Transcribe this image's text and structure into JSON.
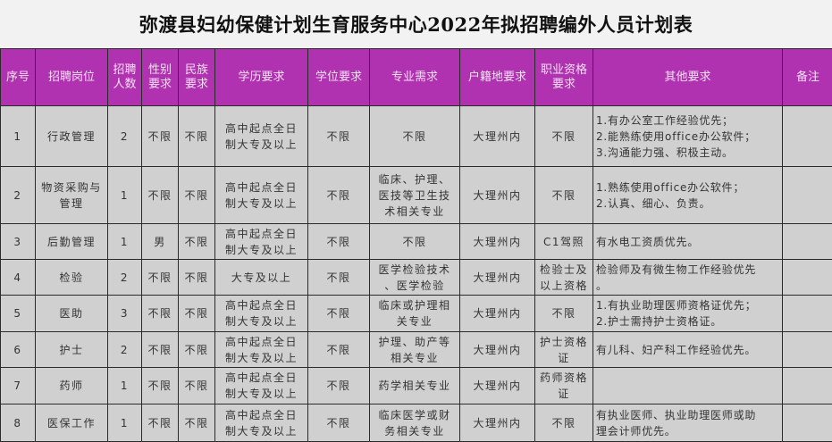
{
  "title": "弥渡县妇幼保健计划生育服务中心2022年拟招聘编外人员计划表",
  "colors": {
    "header_bg": "#b032b0",
    "header_text": "#f4e0f4",
    "cell_bg": "#d0d0d0"
  },
  "headers": [
    "序号",
    "招聘岗位",
    "招聘\n人数",
    "性别\n要求",
    "民族\n要求",
    "学历要求",
    "学位要求",
    "专业需求",
    "户籍地要求",
    "职业资格\n要求",
    "其他要求",
    "备注"
  ],
  "rows": [
    [
      "1",
      "行政管理",
      "2",
      "不限",
      "不限",
      "高中起点全日\n制大专及以上",
      "不限",
      "不限",
      "大理州内",
      "不限",
      "1.有办公室工作经验优先；\n2.能熟练使用office办公软件；\n3.沟通能力强、积极主动。",
      ""
    ],
    [
      "2",
      "物资采购与\n管理",
      "1",
      "不限",
      "不限",
      "高中起点全日\n制大专及以上",
      "不限",
      "临床、护理、\n医技等卫生技\n术相关专业",
      "大理州内",
      "不限",
      "1.熟练使用office办公软件；\n2.认真、细心、负责。",
      ""
    ],
    [
      "3",
      "后勤管理",
      "1",
      "男",
      "不限",
      "高中起点全日\n制大专及以上",
      "不限",
      "不限",
      "大理州内",
      "C1驾照",
      "有水电工资质优先。",
      ""
    ],
    [
      "4",
      "检验",
      "2",
      "不限",
      "不限",
      "大专及以上",
      "不限",
      "医学检验技术\n、医学检验",
      "大理州内",
      "检验士及\n以上资格",
      "检验师及有微生物工作经验优先\n。",
      ""
    ],
    [
      "5",
      "医助",
      "3",
      "不限",
      "不限",
      "高中起点全日\n制大专及以上",
      "不限",
      "临床或护理相\n关专业",
      "大理州内",
      "不限",
      "1.有执业助理医师资格证优先；\n2.护士需持护士资格证。",
      ""
    ],
    [
      "6",
      "护士",
      "2",
      "不限",
      "不限",
      "高中起点全日\n制大专及以上",
      "不限",
      "护理、助产等\n相关专业",
      "大理州内",
      "护士资格\n证",
      "有儿科、妇产科工作经验优先。",
      ""
    ],
    [
      "7",
      "药师",
      "1",
      "不限",
      "不限",
      "高中起点全日\n制大专及以上",
      "不限",
      "药学相关专业",
      "大理州内",
      "药师资格\n证",
      "",
      ""
    ],
    [
      "8",
      "医保工作",
      "1",
      "不限",
      "不限",
      "高中起点全日\n制大专及以上",
      "不限",
      "临床医学或财\n务相关专业",
      "大理州内",
      "不限",
      "有执业医师、执业助理医师或助\n理会计师优先。",
      ""
    ]
  ]
}
